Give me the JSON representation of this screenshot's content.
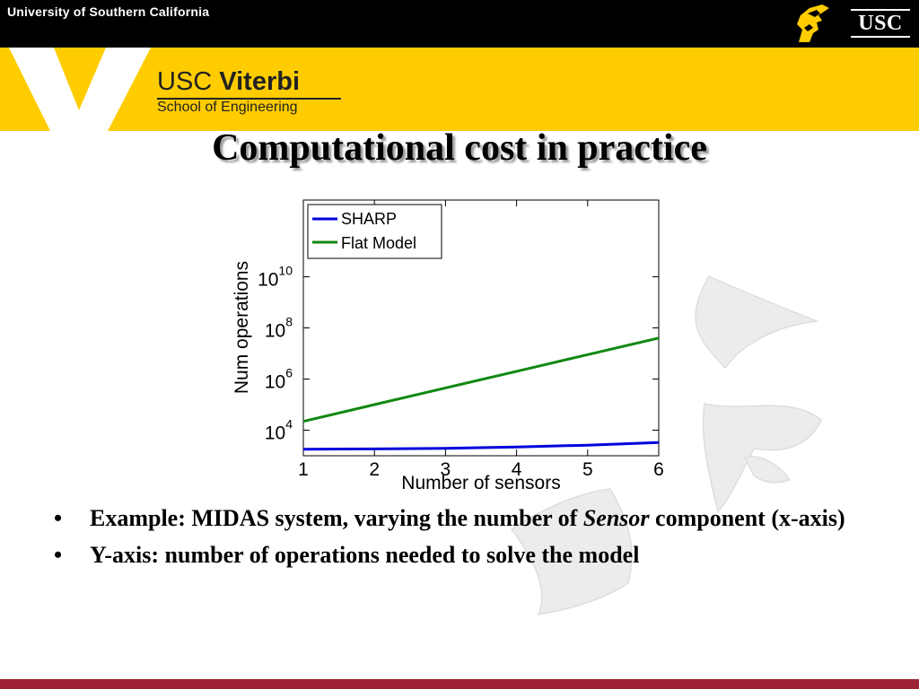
{
  "header": {
    "university": "University of Southern California",
    "usc_badge": "USC"
  },
  "branding": {
    "viterbi_prefix": "USC ",
    "viterbi_name": "Viterbi",
    "school": "School of Engineering"
  },
  "colors": {
    "top_bar": "#000000",
    "band": "#ffcc00",
    "footer": "#9d2235",
    "sharp": "#0000dd",
    "flat_model": "#118811"
  },
  "slide": {
    "title": "Computational cost in practice"
  },
  "chart_data": {
    "type": "line",
    "x": [
      1,
      2,
      3,
      4,
      5,
      6
    ],
    "xlabel": "Number of sensors",
    "ylabel": "Num operations",
    "xlim": [
      1,
      6
    ],
    "ylim": [
      1000,
      10000000000000
    ],
    "yscale": "log",
    "x_ticks": [
      "1",
      "2",
      "3",
      "4",
      "5",
      "6"
    ],
    "y_ticks": [
      {
        "value": 10000,
        "base": "10",
        "exp": "4"
      },
      {
        "value": 1000000,
        "base": "10",
        "exp": "6"
      },
      {
        "value": 100000000,
        "base": "10",
        "exp": "8"
      },
      {
        "value": 10000000000,
        "base": "10",
        "exp": "10"
      }
    ],
    "grid": false,
    "legend": "top-left",
    "series": [
      {
        "name": "SHARP",
        "color": "#0000dd",
        "values": [
          1800,
          1850,
          1950,
          2200,
          2600,
          3300
        ]
      },
      {
        "name": "Flat Model",
        "color": "#118811",
        "values": [
          22000,
          100000,
          450000,
          2000000,
          9000000,
          40000000
        ]
      }
    ]
  },
  "bullets": [
    {
      "dot": "•",
      "text_before": "Example: MIDAS system, varying the number of ",
      "emphasis": "Sensor",
      "text_after": " component (x-axis)"
    },
    {
      "dot": "•",
      "text_before": "Y-axis: number of operations needed to solve the model",
      "emphasis": "",
      "text_after": ""
    }
  ]
}
